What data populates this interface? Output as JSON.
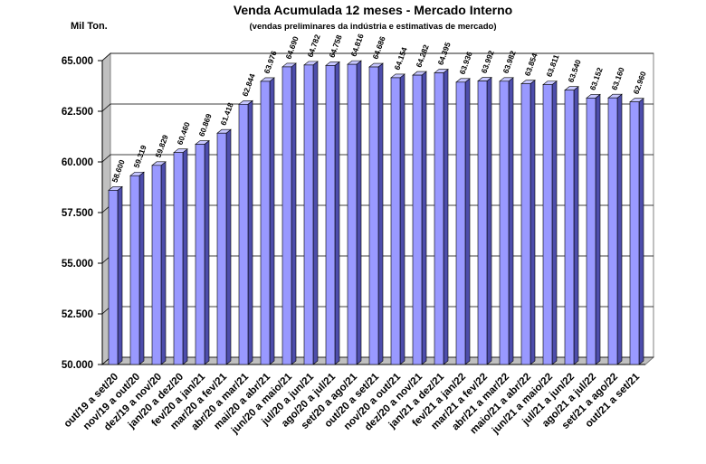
{
  "chart_data": {
    "type": "bar",
    "title": "Venda Acumulada 12 meses -  Mercado Interno",
    "subtitle": "(vendas preliminares da indústria e estimativas de mercado)",
    "ylabel": "Mil Ton.",
    "xlabel": "",
    "ylim": [
      50000,
      65000
    ],
    "yticks": [
      50000,
      52500,
      55000,
      57500,
      60000,
      62500,
      65000
    ],
    "ytick_labels": [
      "50.000",
      "52.500",
      "55.000",
      "57.500",
      "60.000",
      "62.500",
      "65.000"
    ],
    "grid": true,
    "legend": "none",
    "bar_color": "#9999ff",
    "categories": [
      "out/19 a set/20",
      "nov/19 a out/20",
      "dez/19 a nov/20",
      "jan/20 a dez/20",
      "fev/20 a jan/21",
      "mar/20 a fev/21",
      "abr/20 a mar/21",
      "mai/20 a abr/21",
      "jun/20 a maio/21",
      "jul/20 a jun/21",
      "ago/20 a jul/21",
      "set/20 a ago/21",
      "out/20 a set/21",
      "nov/20 a out/21",
      "dez/20 a nov/21",
      "jan/21 a dez/21",
      "fev/21 a jan/22",
      "mar/21 a fev/22",
      "abr/21 a mar/22",
      "maio/21 a abr/22",
      "jun/21 a maio/22",
      "jul/21 a jun/22",
      "ago/21 a jul/22",
      "set/21 a ago/22",
      "out/21 a set/21"
    ],
    "values": [
      58600,
      59319,
      59829,
      60460,
      60869,
      61418,
      62844,
      63976,
      64690,
      64782,
      64758,
      64816,
      64686,
      64154,
      64282,
      64395,
      63936,
      63992,
      63982,
      63854,
      63811,
      63540,
      63152,
      63160,
      62960
    ],
    "value_labels": [
      "58.600",
      "59.319",
      "59.829",
      "60.460",
      "60.869",
      "61.418",
      "62.844",
      "63.976",
      "64.690",
      "64.782",
      "64.758",
      "64.816",
      "64.686",
      "64.154",
      "64.282",
      "64.395",
      "63.936",
      "63.992",
      "63.982",
      "63.854",
      "63.811",
      "63.540",
      "63.152",
      "63.160",
      "62.960"
    ]
  }
}
